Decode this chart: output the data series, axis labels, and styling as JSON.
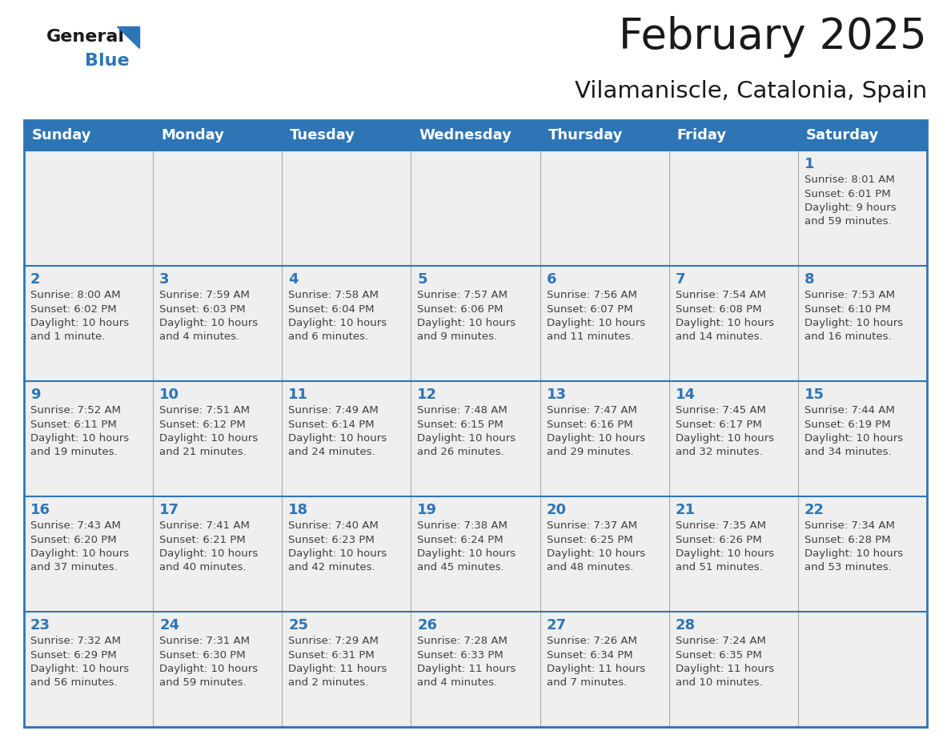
{
  "title": "February 2025",
  "subtitle": "Vilamaniscle, Catalonia, Spain",
  "header_bg": "#2E75B6",
  "header_text_color": "#FFFFFF",
  "cell_bg": "#EFEFEF",
  "border_color": "#2E75B6",
  "day_number_color": "#2E75B6",
  "cell_text_color": "#404040",
  "days_of_week": [
    "Sunday",
    "Monday",
    "Tuesday",
    "Wednesday",
    "Thursday",
    "Friday",
    "Saturday"
  ],
  "weeks": [
    [
      {
        "day": null,
        "info": null
      },
      {
        "day": null,
        "info": null
      },
      {
        "day": null,
        "info": null
      },
      {
        "day": null,
        "info": null
      },
      {
        "day": null,
        "info": null
      },
      {
        "day": null,
        "info": null
      },
      {
        "day": 1,
        "info": "Sunrise: 8:01 AM\nSunset: 6:01 PM\nDaylight: 9 hours\nand 59 minutes."
      }
    ],
    [
      {
        "day": 2,
        "info": "Sunrise: 8:00 AM\nSunset: 6:02 PM\nDaylight: 10 hours\nand 1 minute."
      },
      {
        "day": 3,
        "info": "Sunrise: 7:59 AM\nSunset: 6:03 PM\nDaylight: 10 hours\nand 4 minutes."
      },
      {
        "day": 4,
        "info": "Sunrise: 7:58 AM\nSunset: 6:04 PM\nDaylight: 10 hours\nand 6 minutes."
      },
      {
        "day": 5,
        "info": "Sunrise: 7:57 AM\nSunset: 6:06 PM\nDaylight: 10 hours\nand 9 minutes."
      },
      {
        "day": 6,
        "info": "Sunrise: 7:56 AM\nSunset: 6:07 PM\nDaylight: 10 hours\nand 11 minutes."
      },
      {
        "day": 7,
        "info": "Sunrise: 7:54 AM\nSunset: 6:08 PM\nDaylight: 10 hours\nand 14 minutes."
      },
      {
        "day": 8,
        "info": "Sunrise: 7:53 AM\nSunset: 6:10 PM\nDaylight: 10 hours\nand 16 minutes."
      }
    ],
    [
      {
        "day": 9,
        "info": "Sunrise: 7:52 AM\nSunset: 6:11 PM\nDaylight: 10 hours\nand 19 minutes."
      },
      {
        "day": 10,
        "info": "Sunrise: 7:51 AM\nSunset: 6:12 PM\nDaylight: 10 hours\nand 21 minutes."
      },
      {
        "day": 11,
        "info": "Sunrise: 7:49 AM\nSunset: 6:14 PM\nDaylight: 10 hours\nand 24 minutes."
      },
      {
        "day": 12,
        "info": "Sunrise: 7:48 AM\nSunset: 6:15 PM\nDaylight: 10 hours\nand 26 minutes."
      },
      {
        "day": 13,
        "info": "Sunrise: 7:47 AM\nSunset: 6:16 PM\nDaylight: 10 hours\nand 29 minutes."
      },
      {
        "day": 14,
        "info": "Sunrise: 7:45 AM\nSunset: 6:17 PM\nDaylight: 10 hours\nand 32 minutes."
      },
      {
        "day": 15,
        "info": "Sunrise: 7:44 AM\nSunset: 6:19 PM\nDaylight: 10 hours\nand 34 minutes."
      }
    ],
    [
      {
        "day": 16,
        "info": "Sunrise: 7:43 AM\nSunset: 6:20 PM\nDaylight: 10 hours\nand 37 minutes."
      },
      {
        "day": 17,
        "info": "Sunrise: 7:41 AM\nSunset: 6:21 PM\nDaylight: 10 hours\nand 40 minutes."
      },
      {
        "day": 18,
        "info": "Sunrise: 7:40 AM\nSunset: 6:23 PM\nDaylight: 10 hours\nand 42 minutes."
      },
      {
        "day": 19,
        "info": "Sunrise: 7:38 AM\nSunset: 6:24 PM\nDaylight: 10 hours\nand 45 minutes."
      },
      {
        "day": 20,
        "info": "Sunrise: 7:37 AM\nSunset: 6:25 PM\nDaylight: 10 hours\nand 48 minutes."
      },
      {
        "day": 21,
        "info": "Sunrise: 7:35 AM\nSunset: 6:26 PM\nDaylight: 10 hours\nand 51 minutes."
      },
      {
        "day": 22,
        "info": "Sunrise: 7:34 AM\nSunset: 6:28 PM\nDaylight: 10 hours\nand 53 minutes."
      }
    ],
    [
      {
        "day": 23,
        "info": "Sunrise: 7:32 AM\nSunset: 6:29 PM\nDaylight: 10 hours\nand 56 minutes."
      },
      {
        "day": 24,
        "info": "Sunrise: 7:31 AM\nSunset: 6:30 PM\nDaylight: 10 hours\nand 59 minutes."
      },
      {
        "day": 25,
        "info": "Sunrise: 7:29 AM\nSunset: 6:31 PM\nDaylight: 11 hours\nand 2 minutes."
      },
      {
        "day": 26,
        "info": "Sunrise: 7:28 AM\nSunset: 6:33 PM\nDaylight: 11 hours\nand 4 minutes."
      },
      {
        "day": 27,
        "info": "Sunrise: 7:26 AM\nSunset: 6:34 PM\nDaylight: 11 hours\nand 7 minutes."
      },
      {
        "day": 28,
        "info": "Sunrise: 7:24 AM\nSunset: 6:35 PM\nDaylight: 11 hours\nand 10 minutes."
      },
      {
        "day": null,
        "info": null
      }
    ]
  ],
  "logo_general_color": "#1a1a1a",
  "logo_blue_color": "#2E75B6",
  "title_fontsize": 38,
  "subtitle_fontsize": 21,
  "header_fontsize": 13,
  "day_number_fontsize": 13,
  "cell_text_fontsize": 9.5
}
